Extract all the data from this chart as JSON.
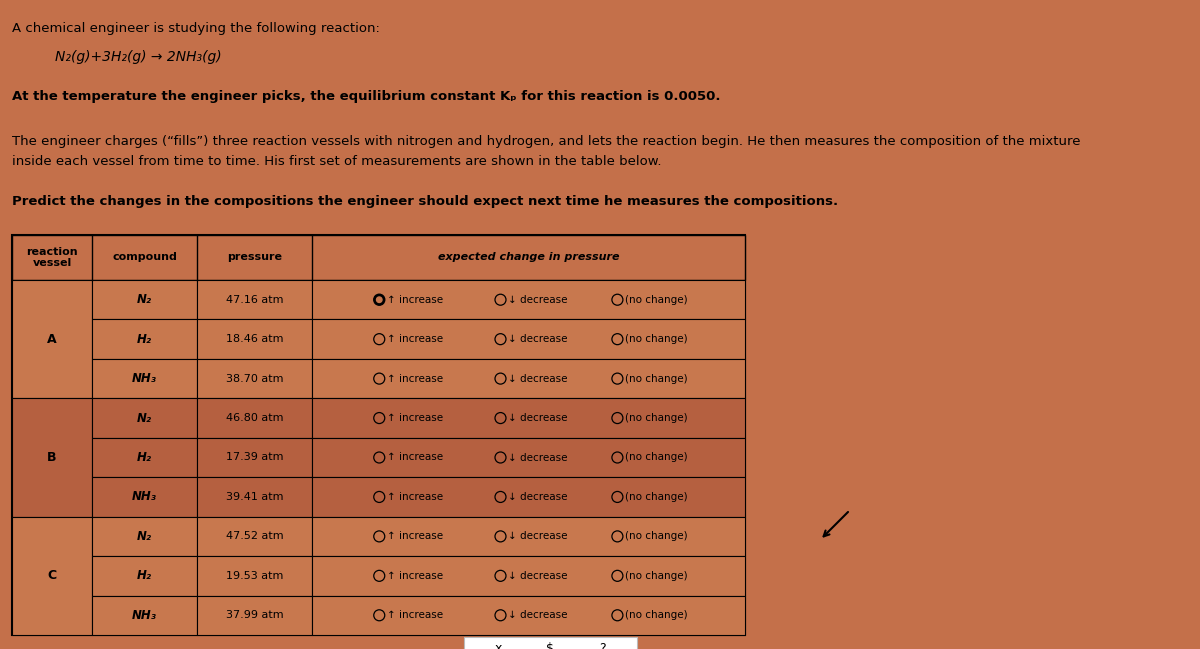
{
  "bg_color": "#c4704a",
  "title_line1": "A chemical engineer is studying the following reaction:",
  "reaction": "N₂(g)+3H₂(g) → 2NH₃(g)",
  "eq_line": "At the temperature the engineer picks, the equilibrium constant Kₚ for this reaction is 0.0050.",
  "para1": "The engineer charges (“fills”) three reaction vessels with nitrogen and hydrogen, and lets the reaction begin. He then measures the composition of the mixture",
  "para1b": "inside each vessel from time to time. His first set of measurements are shown in the table below.",
  "para2": "Predict the changes in the compositions the engineer should expect next time he measures the compositions.",
  "vessels": [
    "A",
    "B",
    "C"
  ],
  "compounds": [
    "N₂",
    "H₂",
    "NH₃"
  ],
  "pressures": [
    [
      "47.16 atm",
      "18.46 atm",
      "38.70 atm"
    ],
    [
      "46.80 atm",
      "17.39 atm",
      "39.41 atm"
    ],
    [
      "47.52 atm",
      "19.53 atm",
      "37.99 atm"
    ]
  ],
  "vessel_A_color": "#c8784e",
  "vessel_B_color": "#b56040",
  "vessel_C_color": "#c8784e",
  "selected_vessel": 0,
  "selected_compound": 0,
  "selected_option": 0
}
